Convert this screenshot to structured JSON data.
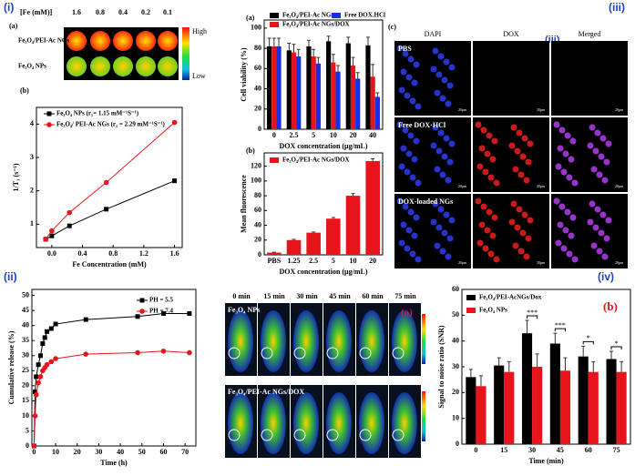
{
  "panel_labels": [
    "(i)",
    "(ii)",
    "(iii)",
    "(iv)"
  ],
  "phantom": {
    "label": "(a)",
    "header": "[Fe (mM)]",
    "concentrations": [
      "1.6",
      "0.8",
      "0.4",
      "0.2",
      "0.1"
    ],
    "rows": [
      "Fe₃O₄/PEI-Ac NGs",
      "Fe₃O₄ NPs"
    ],
    "colorbar": [
      "High",
      "Low"
    ]
  },
  "microscopy": {
    "label": "(c)",
    "inset_label": "(iii)",
    "columns": [
      "DAPI",
      "DOX",
      "Merged"
    ],
    "rows": [
      "PBS",
      "Free DOX·HCl",
      "DOX-loaded NGs"
    ],
    "scale": "20μm"
  },
  "mouse": {
    "label": "(a)",
    "times": [
      "0 min",
      "15 min",
      "30 min",
      "45 min",
      "60 min",
      "75 min"
    ],
    "rows": [
      "Fe₃O₄ NPs",
      "Fe₃O₄/PEI-Ac NGs/DOX"
    ]
  },
  "chart_data": [
    {
      "type": "line",
      "label": "(b)",
      "x_label": "Fe Concentration (mM)",
      "y_label": "1/T₁ (s⁻¹)",
      "x": [
        -0.08,
        0,
        0.23,
        0.71,
        1.6
      ],
      "series": [
        {
          "name": "Fe₃O₄ NPs (r₁= 1.15 mM⁻¹S⁻¹)",
          "color": "#000000",
          "marker": "square",
          "values": [
            0.55,
            0.65,
            0.95,
            1.45,
            2.3
          ]
        },
        {
          "name": "Fe₃O₄/ PEI-Ac NGs (r₁ = 2.29 mM⁻¹S⁻¹)",
          "color": "#e8141b",
          "marker": "circle",
          "values": [
            0.55,
            0.8,
            1.35,
            2.25,
            4.05
          ]
        }
      ],
      "xlim": [
        -0.2,
        1.7
      ],
      "ylim": [
        0.3,
        4.5
      ],
      "xticks": [
        {
          "value": 0,
          "label": "0.0"
        },
        0.4,
        0.8,
        1.2,
        1.6
      ],
      "yticks": [
        1,
        2,
        3,
        4
      ]
    },
    {
      "type": "bar",
      "label": "(a)",
      "x_label": "DOX concentration (μg/mL)",
      "y_label": "Cell viability (%)",
      "categories": [
        "0",
        "2.5",
        "5",
        "10",
        "20",
        "40"
      ],
      "series": [
        {
          "name": "Fe₃O₄/PEI-Ac NGs",
          "color": "#000000",
          "values": [
            82,
            78,
            82,
            87,
            85,
            83
          ],
          "errors": [
            8,
            7,
            6,
            5,
            6,
            8
          ]
        },
        {
          "name": "Fe₃O₄/PEI-Ac NGs/DOX",
          "color": "#e8141b",
          "values": [
            82,
            76,
            72,
            66,
            63,
            52
          ],
          "errors": [
            8,
            8,
            7,
            8,
            8,
            12
          ]
        },
        {
          "name": "Free DOX.HCl",
          "color": "#1730e6",
          "values": [
            82,
            72,
            65,
            57,
            50,
            32
          ],
          "errors": [
            8,
            7,
            6,
            6,
            6,
            4
          ]
        }
      ],
      "ylim": [
        0,
        108
      ],
      "yticks": [
        0,
        20,
        40,
        60,
        80,
        100
      ]
    },
    {
      "type": "bar",
      "label": "(b)",
      "x_label": "DOX concentration (μg/mL)",
      "y_label": "Mean fluorescence",
      "categories": [
        "PBS",
        "1.25",
        "2.5",
        "5",
        "10",
        "20"
      ],
      "series": [
        {
          "name": "Fe₃O₄/PEI-Ac NGs/DOX",
          "color": "#e8141b",
          "values": [
            3,
            20,
            30,
            49,
            80,
            127
          ],
          "errors": [
            0.5,
            1,
            1,
            1.5,
            3,
            3
          ]
        }
      ],
      "ylim": [
        0,
        138
      ],
      "yticks": [
        0,
        20,
        40,
        60,
        80,
        100,
        120
      ]
    },
    {
      "type": "line",
      "x_label": "Time (h)",
      "y_label": "Cumulative release (%)",
      "x": [
        0,
        0.5,
        1,
        2,
        3,
        4,
        5,
        6,
        8,
        10,
        24,
        48,
        60,
        72
      ],
      "series": [
        {
          "name": "PH = 5.5",
          "color": "#000000",
          "marker": "square",
          "values": [
            0,
            18,
            23,
            27,
            30,
            34,
            36,
            38,
            39,
            40.5,
            42,
            43,
            44,
            44
          ]
        },
        {
          "name": "PH = 7.4",
          "color": "#e8141b",
          "marker": "circle",
          "values": [
            0,
            10,
            17,
            21,
            23,
            25,
            26,
            27,
            28,
            29,
            30.5,
            31,
            31.5,
            31
          ]
        }
      ],
      "xlim": [
        -1,
        75
      ],
      "ylim": [
        0,
        52
      ],
      "xticks": [
        0,
        10,
        20,
        30,
        40,
        50,
        60,
        70
      ],
      "yticks": [
        0,
        5,
        10,
        15,
        20,
        25,
        30,
        35,
        40,
        45,
        50
      ]
    },
    {
      "type": "bar",
      "label": "(b)",
      "x_label": "Time (min)",
      "y_label": "Signal to noise ratio (SNR)",
      "categories": [
        "0",
        "15",
        "30",
        "45",
        "60",
        "75"
      ],
      "series": [
        {
          "name": "Fe₃O₄/PEI-AcNGs/Dox",
          "color": "#000000",
          "values": [
            26,
            30.5,
            43,
            39,
            34,
            33
          ],
          "errors": [
            3,
            3,
            5,
            4,
            4,
            3
          ]
        },
        {
          "name": "Fe₃O₄ NPs",
          "color": "#e8141b",
          "values": [
            22.5,
            28,
            30,
            28.5,
            28,
            28
          ],
          "errors": [
            4,
            4,
            5,
            5,
            4,
            4
          ]
        }
      ],
      "annotations": [
        "***",
        "***",
        "*",
        "*"
      ],
      "ylim": [
        0,
        60
      ],
      "yticks": [
        0,
        10,
        20,
        30,
        40,
        50,
        60
      ]
    }
  ]
}
